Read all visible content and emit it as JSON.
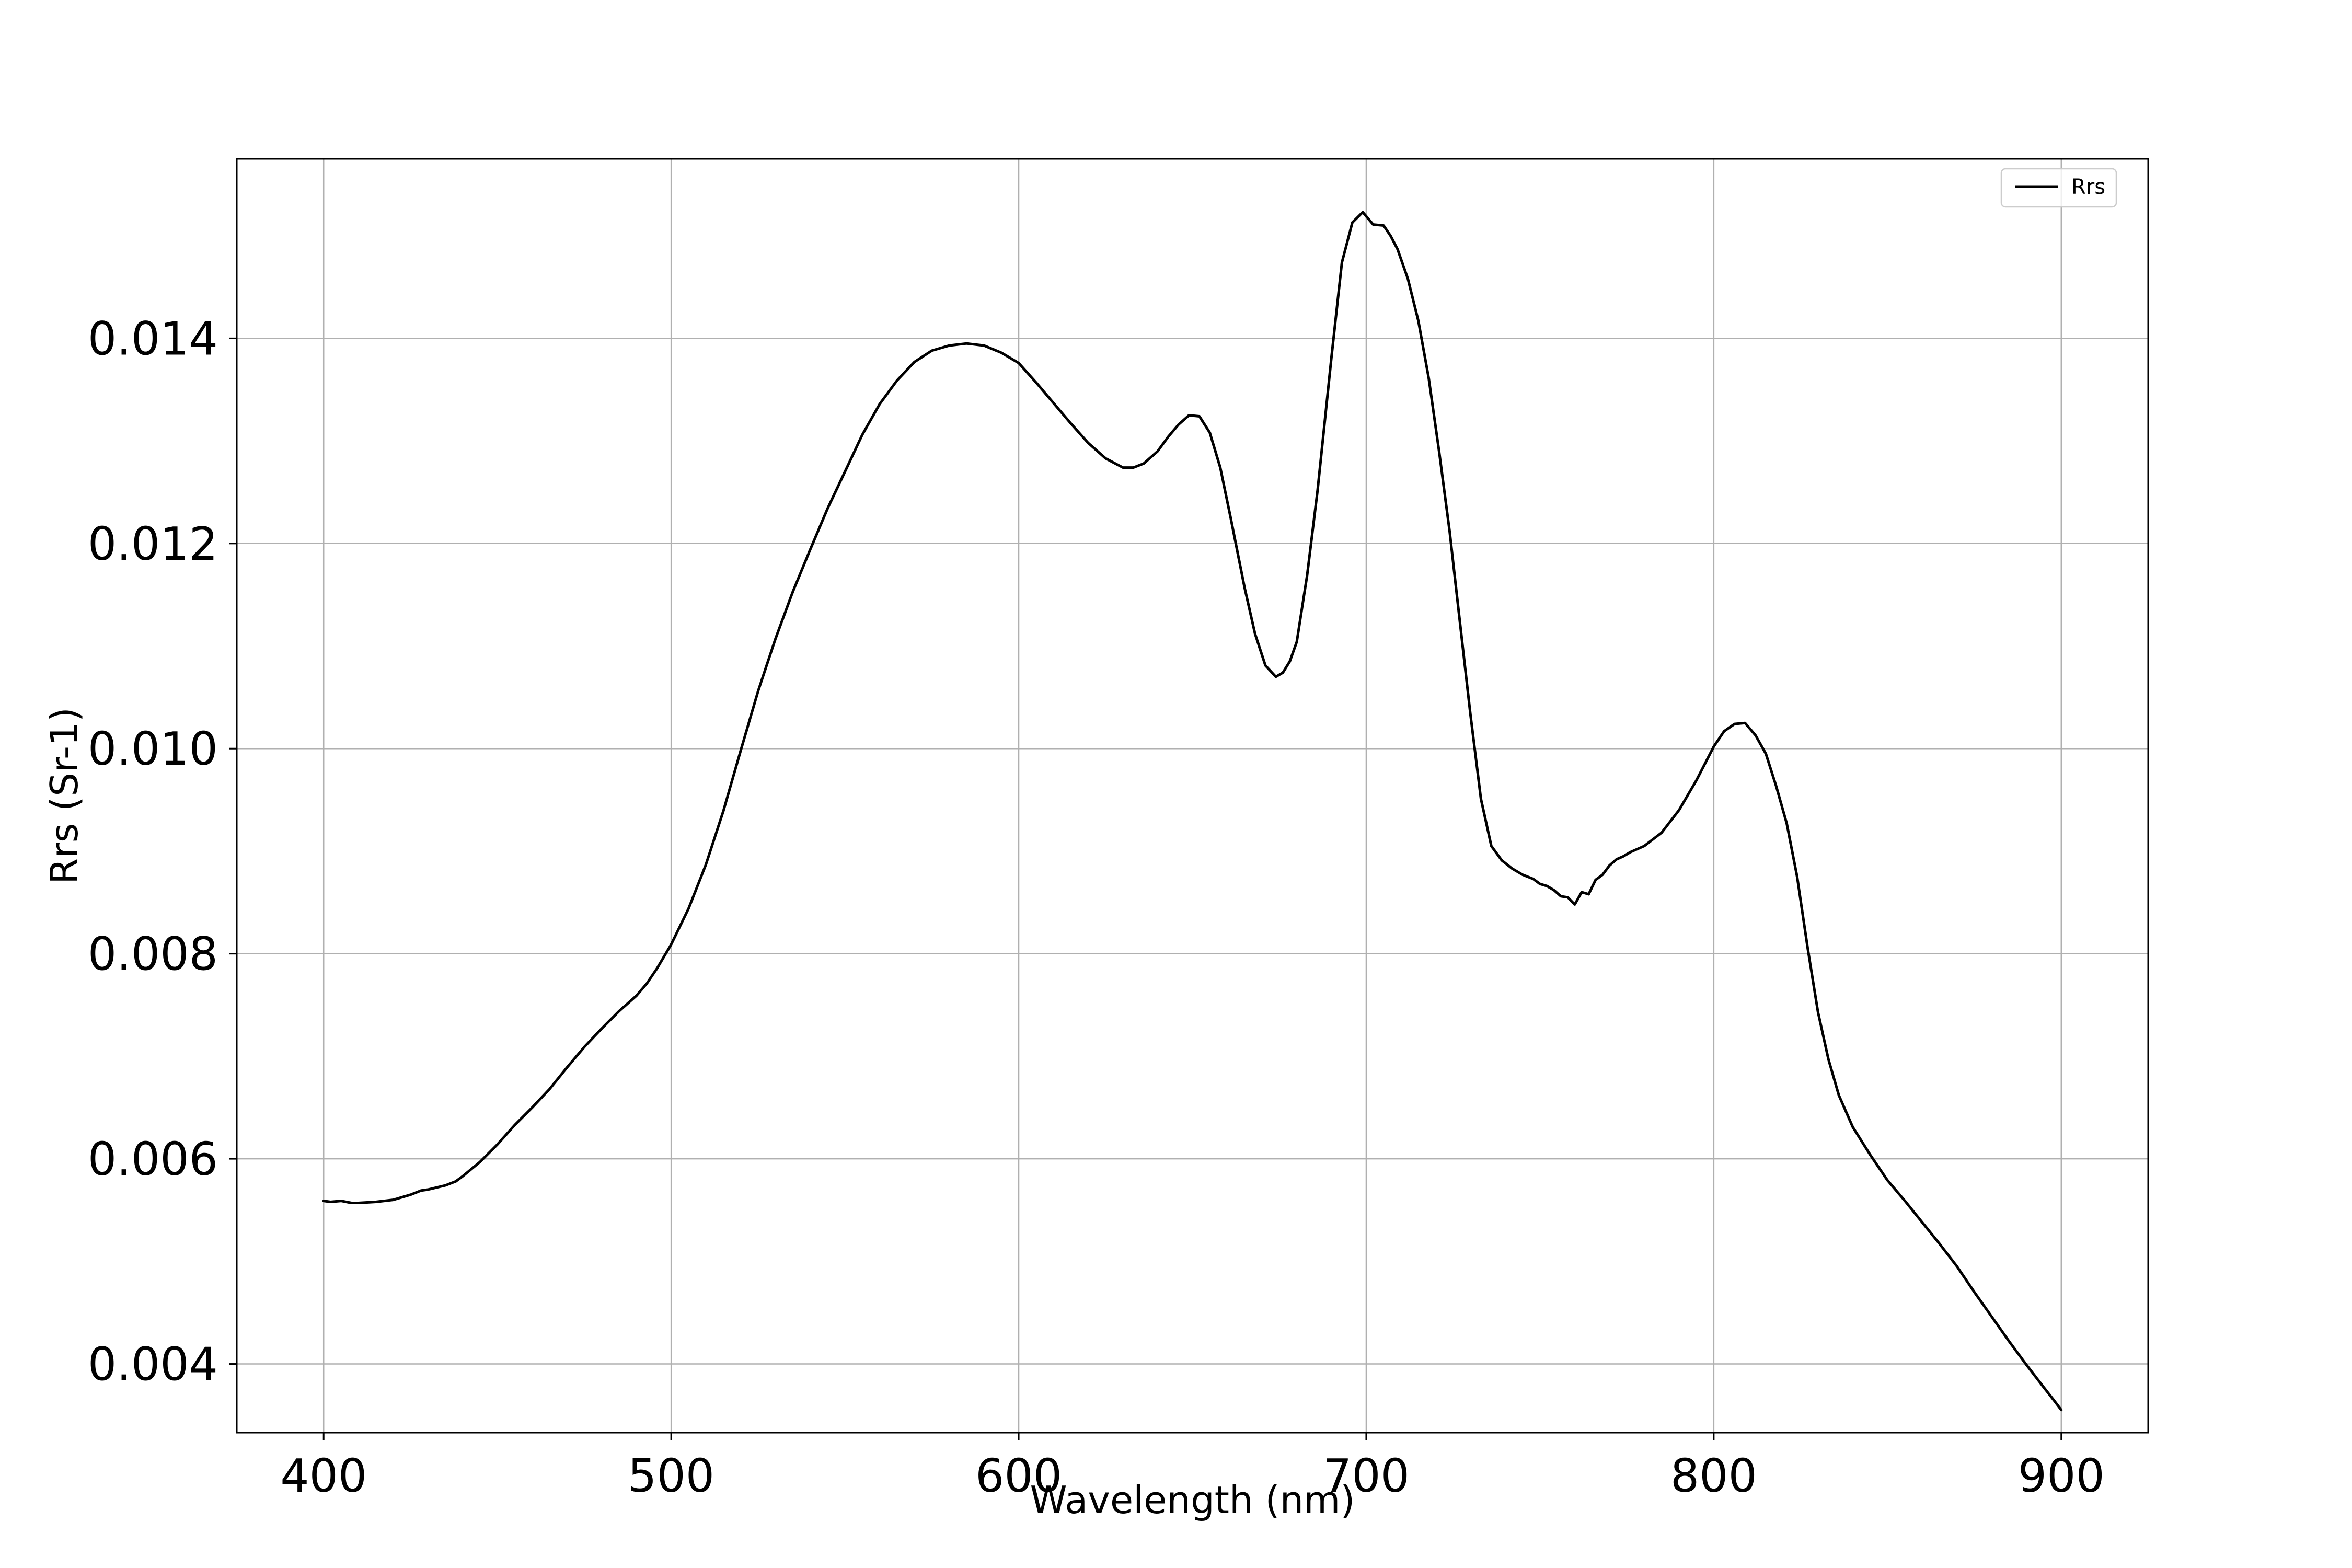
{
  "chart_data": {
    "type": "line",
    "title": "",
    "xlabel": "Wavelength (nm)",
    "ylabel": "Rrs (Sr-1)",
    "xlim": [
      375,
      925
    ],
    "ylim": [
      0.00333,
      0.01575
    ],
    "xticks": [
      400,
      500,
      600,
      700,
      800,
      900
    ],
    "xtick_labels": [
      "400",
      "500",
      "600",
      "700",
      "800",
      "900"
    ],
    "yticks": [
      0.004,
      0.006,
      0.008,
      0.01,
      0.012,
      0.014
    ],
    "ytick_labels": [
      "0.004",
      "0.006",
      "0.008",
      "0.010",
      "0.012",
      "0.014"
    ],
    "grid": true,
    "legend_position": "top-right",
    "series": [
      {
        "name": "Rrs",
        "color": "#000000",
        "x": [
          400,
          402,
          405,
          408,
          410,
          415,
          420,
          422,
          425,
          428,
          430,
          435,
          438,
          440,
          445,
          450,
          455,
          460,
          465,
          470,
          475,
          480,
          485,
          490,
          493,
          496,
          500,
          505,
          510,
          515,
          520,
          525,
          530,
          535,
          540,
          545,
          550,
          555,
          560,
          565,
          570,
          575,
          580,
          585,
          590,
          595,
          600,
          605,
          610,
          615,
          620,
          625,
          630,
          633,
          636,
          640,
          643,
          646,
          649,
          652,
          655,
          658,
          661,
          665,
          668,
          671,
          674,
          676,
          678,
          680,
          683,
          686,
          690,
          693,
          696,
          699,
          702,
          705,
          707,
          709,
          712,
          715,
          718,
          721,
          724,
          727,
          730,
          733,
          736,
          739,
          742,
          745,
          748,
          750,
          752,
          754,
          756,
          758,
          760,
          762,
          764,
          766,
          768,
          770,
          772,
          774,
          776,
          778,
          780,
          785,
          790,
          795,
          800,
          803,
          806,
          809,
          812,
          815,
          818,
          821,
          824,
          827,
          830,
          833,
          836,
          840,
          845,
          850,
          855,
          860,
          865,
          870,
          875,
          880,
          885,
          890,
          895,
          898,
          900
        ],
        "y": [
          0.00559,
          0.00558,
          0.00559,
          0.00557,
          0.00557,
          0.00558,
          0.0056,
          0.00562,
          0.00565,
          0.00569,
          0.0057,
          0.00574,
          0.00578,
          0.00583,
          0.00597,
          0.00614,
          0.00633,
          0.0065,
          0.00668,
          0.00689,
          0.00709,
          0.00727,
          0.00744,
          0.00759,
          0.00771,
          0.00786,
          0.00809,
          0.00844,
          0.00887,
          0.00939,
          0.00998,
          0.01056,
          0.01107,
          0.01153,
          0.01194,
          0.01234,
          0.0127,
          0.01306,
          0.01336,
          0.01359,
          0.01377,
          0.01388,
          0.01393,
          0.01395,
          0.01393,
          0.01386,
          0.01376,
          0.01357,
          0.01337,
          0.01317,
          0.01298,
          0.01283,
          0.01274,
          0.01274,
          0.01278,
          0.0129,
          0.01304,
          0.01316,
          0.01325,
          0.01324,
          0.01308,
          0.01274,
          0.01225,
          0.01157,
          0.01112,
          0.01081,
          0.0107,
          0.01074,
          0.01085,
          0.01104,
          0.01169,
          0.01252,
          0.01382,
          0.01474,
          0.01513,
          0.01523,
          0.01511,
          0.0151,
          0.015,
          0.01487,
          0.01458,
          0.01417,
          0.01361,
          0.01289,
          0.01212,
          0.01122,
          0.01033,
          0.00951,
          0.00905,
          0.00891,
          0.00883,
          0.00877,
          0.00873,
          0.00868,
          0.00866,
          0.00862,
          0.00856,
          0.00855,
          0.00848,
          0.0086,
          0.00858,
          0.00872,
          0.00877,
          0.00886,
          0.00892,
          0.00895,
          0.00899,
          0.00902,
          0.00905,
          0.00918,
          0.0094,
          0.00969,
          0.01002,
          0.01017,
          0.01024,
          0.01025,
          0.01013,
          0.00995,
          0.00963,
          0.00927,
          0.00875,
          0.00806,
          0.00743,
          0.00697,
          0.00662,
          0.00631,
          0.00604,
          0.00579,
          0.00559,
          0.00538,
          0.00517,
          0.00495,
          0.0047,
          0.00446,
          0.00422,
          0.00399,
          0.00377,
          0.00364,
          0.00355
        ]
      }
    ]
  }
}
